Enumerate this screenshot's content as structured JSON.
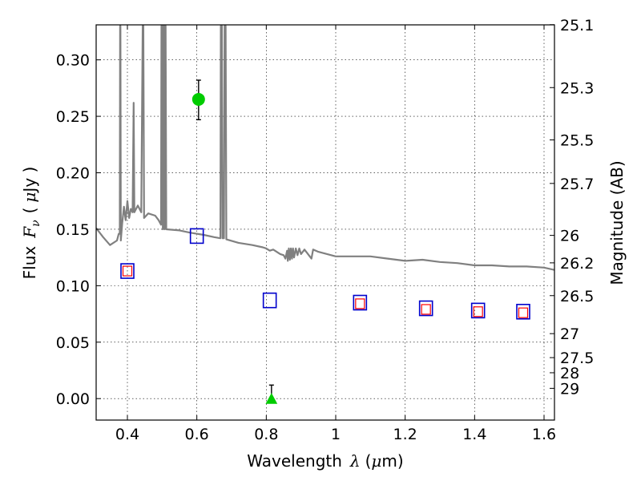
{
  "chart_data": {
    "type": "scatter",
    "xlabel": {
      "prefix": "Wavelength",
      "symbol": "λ",
      "unit_open": "(",
      "unit_mu": "μ",
      "unit_rest": "m)"
    },
    "ylabel": {
      "prefix": "Flux",
      "symbol": "F",
      "subscript": "ν",
      "unit_open": "(",
      "unit_mu": "μ",
      "unit_rest": "Jy )"
    },
    "y2label": "Magnitude (AB)",
    "xlim": [
      0.31,
      1.63
    ],
    "ylim": [
      -0.019,
      0.331
    ],
    "grid": true,
    "x_ticks": [
      {
        "value": 0.4,
        "label": "0.4"
      },
      {
        "value": 0.6,
        "label": "0.6"
      },
      {
        "value": 0.8,
        "label": "0.8"
      },
      {
        "value": 1.0,
        "label": "1"
      },
      {
        "value": 1.2,
        "label": "1.2"
      },
      {
        "value": 1.4,
        "label": "1.4"
      },
      {
        "value": 1.6,
        "label": "1.6"
      }
    ],
    "y_ticks": [
      {
        "value": 0.0,
        "label": "0.00"
      },
      {
        "value": 0.05,
        "label": "0.05"
      },
      {
        "value": 0.1,
        "label": "0.10"
      },
      {
        "value": 0.15,
        "label": "0.15"
      },
      {
        "value": 0.2,
        "label": "0.20"
      },
      {
        "value": 0.25,
        "label": "0.25"
      },
      {
        "value": 0.3,
        "label": "0.30"
      }
    ],
    "magnitude_ticks": [
      {
        "mag": 25.1,
        "label": "25.1"
      },
      {
        "mag": 25.3,
        "label": "25.3"
      },
      {
        "mag": 25.5,
        "label": "25.5"
      },
      {
        "mag": 25.7,
        "label": "25.7"
      },
      {
        "mag": 26.0,
        "label": "26"
      },
      {
        "mag": 26.2,
        "label": "26.2"
      },
      {
        "mag": 26.5,
        "label": "26.5"
      },
      {
        "mag": 27.0,
        "label": "27"
      },
      {
        "mag": 27.5,
        "label": "27.5"
      },
      {
        "mag": 28.0,
        "label": "28"
      },
      {
        "mag": 29.0,
        "label": "29"
      }
    ],
    "model_spectrum": {
      "color": "#808080",
      "points": [
        [
          0.31,
          0.151
        ],
        [
          0.33,
          0.143
        ],
        [
          0.35,
          0.136
        ],
        [
          0.37,
          0.14
        ],
        [
          0.375,
          0.146
        ],
        [
          0.378,
          0.146
        ],
        [
          0.379,
          0.33
        ],
        [
          0.38,
          0.33
        ],
        [
          0.381,
          0.14
        ],
        [
          0.385,
          0.155
        ],
        [
          0.39,
          0.17
        ],
        [
          0.395,
          0.158
        ],
        [
          0.4,
          0.175
        ],
        [
          0.405,
          0.16
        ],
        [
          0.41,
          0.168
        ],
        [
          0.415,
          0.165
        ],
        [
          0.418,
          0.262
        ],
        [
          0.42,
          0.165
        ],
        [
          0.43,
          0.171
        ],
        [
          0.44,
          0.165
        ],
        [
          0.444,
          0.33
        ],
        [
          0.446,
          0.33
        ],
        [
          0.448,
          0.16
        ],
        [
          0.46,
          0.164
        ],
        [
          0.48,
          0.162
        ],
        [
          0.49,
          0.158
        ],
        [
          0.497,
          0.154
        ],
        [
          0.498,
          0.33
        ],
        [
          0.5,
          0.33
        ],
        [
          0.502,
          0.15
        ],
        [
          0.503,
          0.33
        ],
        [
          0.505,
          0.33
        ],
        [
          0.507,
          0.15
        ],
        [
          0.508,
          0.33
        ],
        [
          0.51,
          0.33
        ],
        [
          0.512,
          0.15
        ],
        [
          0.55,
          0.149
        ],
        [
          0.58,
          0.147
        ],
        [
          0.62,
          0.145
        ],
        [
          0.65,
          0.143
        ],
        [
          0.668,
          0.142
        ],
        [
          0.669,
          0.33
        ],
        [
          0.672,
          0.33
        ],
        [
          0.674,
          0.142
        ],
        [
          0.678,
          0.142
        ],
        [
          0.68,
          0.33
        ],
        [
          0.683,
          0.33
        ],
        [
          0.685,
          0.141
        ],
        [
          0.72,
          0.138
        ],
        [
          0.76,
          0.136
        ],
        [
          0.79,
          0.134
        ],
        [
          0.8,
          0.133
        ],
        [
          0.81,
          0.131
        ],
        [
          0.82,
          0.132
        ],
        [
          0.84,
          0.128
        ],
        [
          0.85,
          0.127
        ],
        [
          0.855,
          0.124
        ],
        [
          0.86,
          0.131
        ],
        [
          0.862,
          0.122
        ],
        [
          0.865,
          0.133
        ],
        [
          0.868,
          0.123
        ],
        [
          0.871,
          0.133
        ],
        [
          0.874,
          0.124
        ],
        [
          0.877,
          0.133
        ],
        [
          0.88,
          0.125
        ],
        [
          0.885,
          0.133
        ],
        [
          0.89,
          0.127
        ],
        [
          0.895,
          0.133
        ],
        [
          0.9,
          0.128
        ],
        [
          0.91,
          0.132
        ],
        [
          0.93,
          0.124
        ],
        [
          0.935,
          0.132
        ],
        [
          0.95,
          0.13
        ],
        [
          1.0,
          0.126
        ],
        [
          1.05,
          0.126
        ],
        [
          1.1,
          0.126
        ],
        [
          1.15,
          0.124
        ],
        [
          1.2,
          0.122
        ],
        [
          1.25,
          0.123
        ],
        [
          1.3,
          0.121
        ],
        [
          1.35,
          0.12
        ],
        [
          1.4,
          0.118
        ],
        [
          1.45,
          0.118
        ],
        [
          1.5,
          0.117
        ],
        [
          1.55,
          0.117
        ],
        [
          1.6,
          0.116
        ],
        [
          1.63,
          0.114
        ]
      ]
    },
    "model_photometry": {
      "color": "#0000cc",
      "points": [
        [
          0.4,
          0.113
        ],
        [
          0.6,
          0.144
        ],
        [
          0.81,
          0.087
        ],
        [
          1.07,
          0.085
        ],
        [
          1.26,
          0.08
        ],
        [
          1.41,
          0.078
        ],
        [
          1.54,
          0.077
        ]
      ]
    },
    "observed_photometry": {
      "color": "#ff0000",
      "points": [
        [
          0.4,
          0.113
        ],
        [
          1.07,
          0.084
        ],
        [
          1.26,
          0.079
        ],
        [
          1.41,
          0.077
        ],
        [
          1.54,
          0.076
        ]
      ]
    },
    "detections": {
      "color": "#00cc00",
      "points": [
        {
          "x": 0.605,
          "y": 0.265,
          "err_lo": 0.247,
          "err_hi": 0.282
        }
      ]
    },
    "upper_limits": {
      "color": "#00cc00",
      "points": [
        {
          "x": 0.815,
          "y": 0.0,
          "err_lo": 0.0,
          "err_hi": 0.012
        }
      ]
    }
  }
}
